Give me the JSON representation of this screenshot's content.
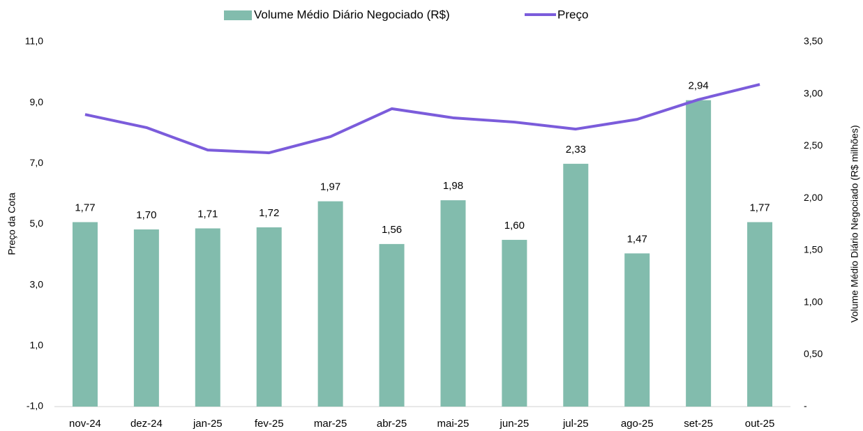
{
  "chart_data": {
    "type": "combo",
    "categories": [
      "nov-24",
      "dez-24",
      "jan-25",
      "fev-25",
      "mar-25",
      "abr-25",
      "mai-25",
      "jun-25",
      "jul-25",
      "ago-25",
      "set-25",
      "out-25"
    ],
    "series": [
      {
        "name": "Volume Médio Diário Negociado (R$)",
        "type": "bar",
        "axis": "y2",
        "color": "#82bcad",
        "values": [
          1.77,
          1.7,
          1.71,
          1.72,
          1.97,
          1.56,
          1.98,
          1.6,
          2.33,
          1.47,
          2.94,
          1.77
        ],
        "value_labels": [
          "1,77",
          "1,70",
          "1,71",
          "1,72",
          "1,97",
          "1,56",
          "1,98",
          "1,60",
          "2,33",
          "1,47",
          "2,94",
          "1,77"
        ]
      },
      {
        "name": "Preço",
        "type": "line",
        "axis": "y",
        "color": "#7b5cdb",
        "values": [
          8.61,
          8.18,
          7.44,
          7.35,
          7.88,
          8.8,
          8.5,
          8.36,
          8.13,
          8.45,
          9.1,
          9.6
        ]
      }
    ],
    "ylabel": "Preço da Cota",
    "y2label": "Volume Médio Diário Negociado (R$ milhões)",
    "ylim": [
      -1,
      11
    ],
    "yticks": [
      {
        "value": -1,
        "label": "-1,0"
      },
      {
        "value": 1,
        "label": "1,0"
      },
      {
        "value": 3,
        "label": "3,0"
      },
      {
        "value": 5,
        "label": "5,0"
      },
      {
        "value": 7,
        "label": "7,0"
      },
      {
        "value": 9,
        "label": "9,0"
      },
      {
        "value": 11,
        "label": "11,0"
      }
    ],
    "y2lim": [
      0,
      3.5
    ],
    "y2ticks": [
      {
        "value": 0,
        "label": "-"
      },
      {
        "value": 0.5,
        "label": "0,50"
      },
      {
        "value": 1,
        "label": "1,00"
      },
      {
        "value": 1.5,
        "label": "1,50"
      },
      {
        "value": 2,
        "label": "2,00"
      },
      {
        "value": 2.5,
        "label": "2,50"
      },
      {
        "value": 3,
        "label": "3,00"
      },
      {
        "value": 3.5,
        "label": "3,50"
      }
    ],
    "legend": "top"
  }
}
